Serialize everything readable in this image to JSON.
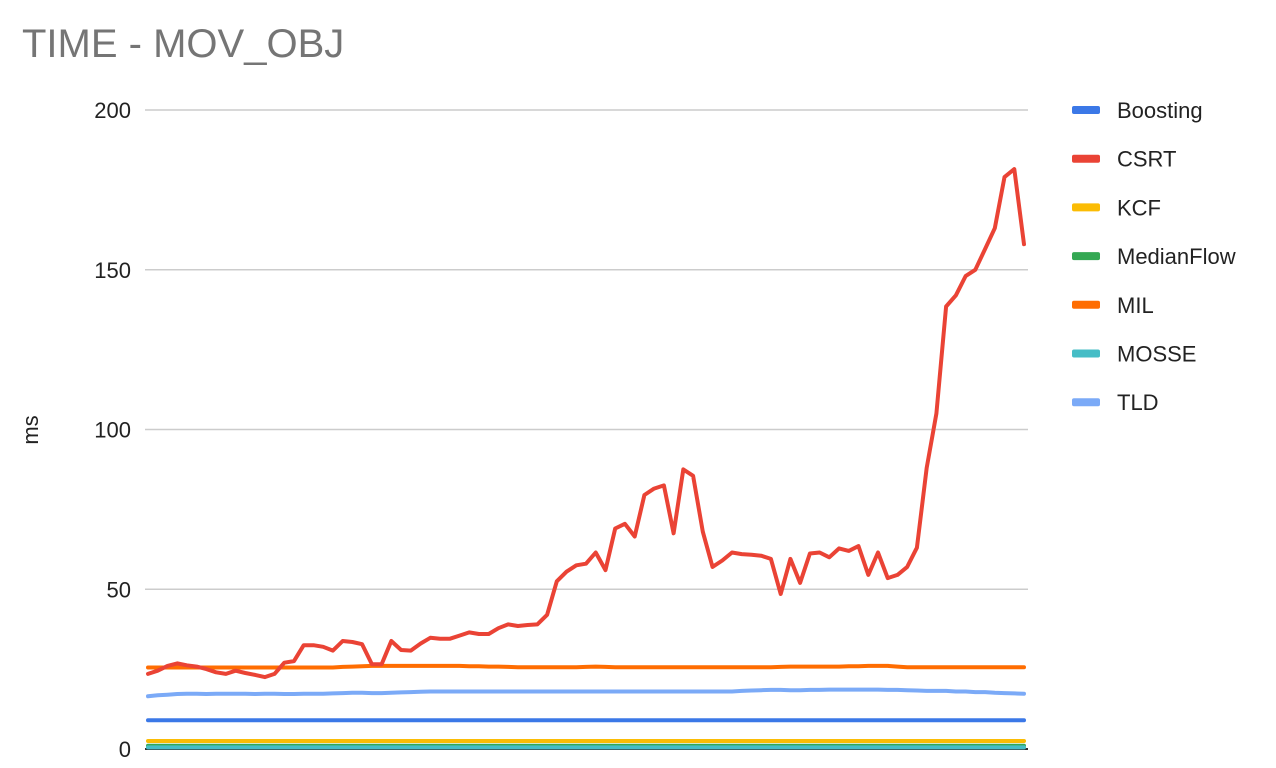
{
  "chart_data": {
    "type": "line",
    "title": "TIME - MOV_OBJ",
    "xlabel": "",
    "ylabel": "ms",
    "ylim": [
      0,
      200
    ],
    "yticks": [
      0,
      50,
      100,
      150,
      200
    ],
    "grid": true,
    "legend_position": "right",
    "series": [
      {
        "name": "Boosting",
        "color": "#3b78e7",
        "values": [
          9,
          9,
          9,
          9,
          9,
          9,
          9,
          9,
          9,
          9,
          9,
          9,
          9,
          9,
          9,
          9,
          9,
          9,
          9,
          9,
          9,
          9,
          9,
          9,
          9,
          9,
          9,
          9,
          9,
          9,
          9,
          9,
          9,
          9,
          9,
          9,
          9,
          9,
          9,
          9,
          9,
          9,
          9,
          9,
          9,
          9,
          9,
          9,
          9,
          9,
          9,
          9,
          9,
          9,
          9,
          9,
          9,
          9,
          9,
          9,
          9,
          9,
          9,
          9,
          9,
          9,
          9,
          9,
          9,
          9,
          9,
          9,
          9,
          9,
          9,
          9,
          9,
          9,
          9,
          9,
          9,
          9,
          9,
          9,
          9,
          9,
          9,
          9,
          9,
          9,
          9,
          9,
          9,
          9,
          9,
          9,
          9,
          9,
          9,
          9,
          9,
          9,
          9,
          9,
          9,
          9,
          9,
          9,
          9,
          9,
          9,
          9,
          9,
          9,
          9,
          9,
          9,
          9,
          9,
          9,
          9,
          9,
          9,
          9,
          9,
          9,
          9
        ]
      },
      {
        "name": "CSRT",
        "color": "#ea4335",
        "values": [
          23.5,
          24.5,
          26,
          26.8,
          26.2,
          25.8,
          25,
          24,
          23.5,
          24.5,
          23.8,
          23.2,
          22.5,
          23.5,
          27,
          27.5,
          32.5,
          32.5,
          32,
          30.8,
          33.8,
          33.5,
          32.8,
          26.5,
          26.5,
          33.8,
          31,
          30.8,
          33,
          34.8,
          34.5,
          34.5,
          35.5,
          36.5,
          36,
          36,
          37.8,
          39,
          38.5,
          38.8,
          39,
          42,
          52.5,
          55.5,
          57.5,
          58,
          61.5,
          56,
          69,
          70.5,
          66.5,
          79.5,
          81.5,
          82.5,
          67.5,
          87.5,
          85.5,
          68,
          57,
          59,
          61.5,
          61,
          60.8,
          60.5,
          59.5,
          48.5,
          59.5,
          52,
          61.2,
          61.5,
          60,
          62.8,
          62,
          63.5,
          54.5,
          61.5,
          53.5,
          54.5,
          57,
          63,
          88,
          105,
          138.5,
          142,
          148,
          150,
          156.5,
          163,
          179,
          181.5,
          158
        ]
      },
      {
        "name": "KCF",
        "color": "#fbbc04",
        "values": [
          2.5,
          2.5,
          2.5,
          2.5,
          2.5,
          2.5,
          2.5,
          2.5,
          2.5,
          2.5,
          2.5,
          2.5,
          2.5,
          2.5,
          2.5,
          2.5,
          2.5,
          2.5,
          2.5,
          2.5,
          2.5,
          2.5,
          2.5,
          2.5,
          2.5,
          2.5,
          2.5,
          2.5,
          2.5,
          2.5,
          2.5,
          2.5,
          2.5,
          2.5,
          2.5,
          2.5,
          2.5,
          2.5,
          2.5,
          2.5,
          2.5,
          2.5,
          2.5,
          2.5,
          2.5,
          2.5,
          2.5,
          2.5,
          2.5,
          2.5,
          2.5,
          2.5,
          2.5,
          2.5,
          2.5,
          2.5,
          2.5,
          2.5,
          2.5,
          2.5,
          2.5,
          2.5,
          2.5,
          2.5,
          2.5,
          2.5,
          2.5,
          2.5,
          2.5,
          2.5,
          2.5,
          2.5,
          2.5,
          2.5,
          2.5,
          2.5,
          2.5,
          2.5,
          2.5,
          2.5,
          2.5,
          2.5,
          2.5,
          2.5,
          2.5,
          2.5,
          2.5,
          2.5,
          2.5,
          2.5,
          2.5
        ]
      },
      {
        "name": "MedianFlow",
        "color": "#34a853",
        "values": [
          1,
          1,
          1,
          1,
          1,
          1,
          1,
          1,
          1,
          1,
          1,
          1,
          1,
          1,
          1,
          1,
          1,
          1,
          1,
          1,
          1,
          1,
          1,
          1,
          1,
          1,
          1,
          1,
          1,
          1,
          1,
          1,
          1,
          1,
          1,
          1,
          1,
          1,
          1,
          1,
          1,
          1,
          1,
          1,
          1,
          1,
          1,
          1,
          1,
          1,
          1,
          1,
          1,
          1,
          1,
          1,
          1,
          1,
          1,
          1,
          1,
          1,
          1,
          1,
          1,
          1,
          1,
          1,
          1,
          1,
          1,
          1,
          1,
          1,
          1,
          1,
          1,
          1,
          1,
          1,
          1,
          1,
          1,
          1,
          1,
          1,
          1,
          1,
          1,
          1,
          1
        ]
      },
      {
        "name": "MIL",
        "color": "#ff6d01",
        "values": [
          25.5,
          25.5,
          25.5,
          25.5,
          25.5,
          25.5,
          25.5,
          25.5,
          25.5,
          25.5,
          25.5,
          25.5,
          25.5,
          25.5,
          25.5,
          25.5,
          25.5,
          25.5,
          25.5,
          25.5,
          25.7,
          25.8,
          25.9,
          26,
          26,
          26,
          26,
          26,
          26,
          26,
          26,
          26,
          26,
          25.9,
          25.9,
          25.8,
          25.8,
          25.7,
          25.6,
          25.6,
          25.6,
          25.6,
          25.6,
          25.6,
          25.6,
          25.7,
          25.8,
          25.7,
          25.6,
          25.6,
          25.6,
          25.6,
          25.6,
          25.6,
          25.6,
          25.6,
          25.6,
          25.6,
          25.6,
          25.6,
          25.6,
          25.6,
          25.6,
          25.6,
          25.6,
          25.7,
          25.8,
          25.8,
          25.8,
          25.8,
          25.8,
          25.8,
          25.9,
          25.9,
          26,
          26,
          26,
          25.8,
          25.6,
          25.6,
          25.6,
          25.6,
          25.6,
          25.6,
          25.6,
          25.6,
          25.6,
          25.6,
          25.6,
          25.6,
          25.6
        ]
      },
      {
        "name": "MOSSE",
        "color": "#46bdc6",
        "values": [
          0.5,
          0.5,
          0.5,
          0.5,
          0.5,
          0.5,
          0.5,
          0.5,
          0.5,
          0.5,
          0.5,
          0.5,
          0.5,
          0.5,
          0.5,
          0.5,
          0.5,
          0.5,
          0.5,
          0.5,
          0.5,
          0.5,
          0.5,
          0.5,
          0.5,
          0.5,
          0.5,
          0.5,
          0.5,
          0.5,
          0.5,
          0.5,
          0.5,
          0.5,
          0.5,
          0.5,
          0.5,
          0.5,
          0.5,
          0.5,
          0.5,
          0.5,
          0.5,
          0.5,
          0.5,
          0.5,
          0.5,
          0.5,
          0.5,
          0.5,
          0.5,
          0.5,
          0.5,
          0.5,
          0.5,
          0.5,
          0.5,
          0.5,
          0.5,
          0.5,
          0.5,
          0.5,
          0.5,
          0.5,
          0.5,
          0.5,
          0.5,
          0.5,
          0.5,
          0.5,
          0.5,
          0.5,
          0.5,
          0.5,
          0.5,
          0.5,
          0.5,
          0.5,
          0.5,
          0.5,
          0.5,
          0.5,
          0.5,
          0.5,
          0.5,
          0.5,
          0.5,
          0.5,
          0.5,
          0.5,
          0.5
        ]
      },
      {
        "name": "TLD",
        "color": "#7baaf7",
        "values": [
          16.5,
          16.8,
          17,
          17.2,
          17.3,
          17.3,
          17.2,
          17.3,
          17.3,
          17.3,
          17.3,
          17.2,
          17.3,
          17.3,
          17.2,
          17.2,
          17.3,
          17.3,
          17.3,
          17.4,
          17.5,
          17.6,
          17.6,
          17.5,
          17.5,
          17.6,
          17.7,
          17.8,
          17.9,
          18,
          18,
          18,
          18,
          18,
          18,
          18,
          18,
          18,
          18,
          18,
          18,
          18,
          18,
          18,
          18,
          18,
          18,
          18,
          18,
          18,
          18,
          18,
          18,
          18,
          18,
          18,
          18,
          18,
          18,
          18,
          18,
          18.2,
          18.3,
          18.4,
          18.5,
          18.5,
          18.4,
          18.4,
          18.5,
          18.5,
          18.6,
          18.6,
          18.6,
          18.6,
          18.6,
          18.6,
          18.5,
          18.5,
          18.4,
          18.3,
          18.2,
          18.2,
          18.2,
          18,
          18,
          17.8,
          17.8,
          17.6,
          17.5,
          17.4,
          17.3
        ]
      }
    ]
  }
}
